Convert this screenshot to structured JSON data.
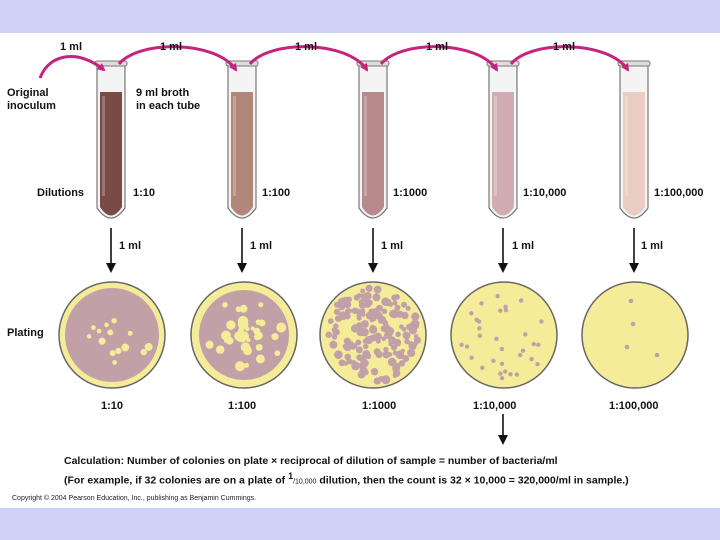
{
  "transfer_labels": [
    "1 ml",
    "1 ml",
    "1 ml",
    "1 ml",
    "1 ml"
  ],
  "inoculum_label_1": "Original",
  "inoculum_label_2": "inoculum",
  "broth_label_1": "9 ml broth",
  "broth_label_2": "in each tube",
  "dilutions_label": "Dilutions",
  "plating_label": "Plating",
  "tube_dilutions": [
    "1:10",
    "1:100",
    "1:1000",
    "1:10,000",
    "1:100,000"
  ],
  "plate_volume_labels": [
    "1 ml",
    "1 ml",
    "1 ml",
    "1 ml",
    "1 ml"
  ],
  "plate_dilutions": [
    "1:10",
    "1:100",
    "1:1000",
    "1:10,000",
    "1:100,000"
  ],
  "calculation": "Calculation: Number of colonies on plate × reciprocal of dilution of sample = number of bacteria/ml",
  "example_part1": "(For example, if 32 colonies are on a plate of ",
  "example_fraction_num": "1",
  "example_fraction_den": "/10,000",
  "example_part2": " dilution, then the count is 32 × 10,000 = 320,000/ml in sample.)",
  "copyright": "Copyright © 2004 Pearson Education, Inc., publishing as Benjamin Cummings.",
  "colors": {
    "background": "#cdd0f7",
    "arrow": "#c2247e",
    "tube_fills": [
      "#7a4a45",
      "#b1877a",
      "#b78a8c",
      "#d0adb2",
      "#e9cdc2"
    ],
    "plate_agar": "#f5ec9a",
    "colony": "#c2a0a8"
  }
}
